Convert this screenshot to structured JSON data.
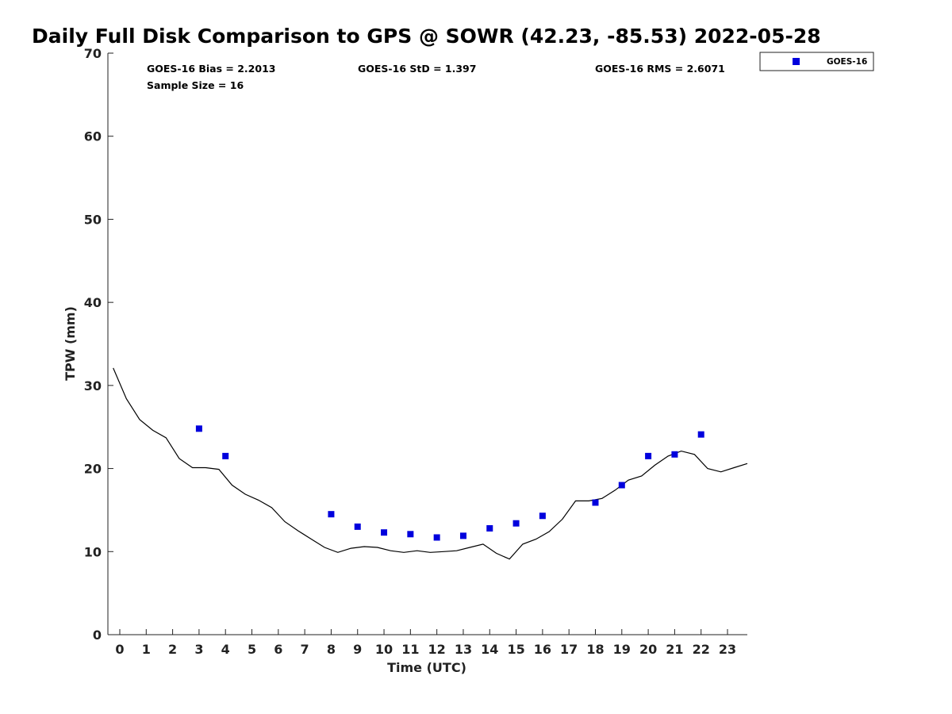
{
  "chart_data": {
    "type": "scatter",
    "title": "Daily Full Disk Comparison to GPS @ SOWR (42.23, -85.53) 2022-05-28",
    "xlabel": "Time (UTC)",
    "ylabel": "TPW (mm)",
    "xlim": [
      -0.45,
      23.75
    ],
    "ylim": [
      0,
      70
    ],
    "x_ticks": [
      0,
      1,
      2,
      3,
      4,
      5,
      6,
      7,
      8,
      9,
      10,
      11,
      12,
      13,
      14,
      15,
      16,
      17,
      18,
      19,
      20,
      21,
      22,
      23
    ],
    "y_ticks": [
      0,
      10,
      20,
      30,
      40,
      50,
      60,
      70
    ],
    "grid": false,
    "legend": {
      "position": "outside-top-right",
      "entries": [
        "GOES-16"
      ]
    },
    "stats": {
      "bias": "GOES-16 Bias = 2.2013",
      "std": "GOES-16 StD = 1.397",
      "rms": "GOES-16 RMS = 2.6071",
      "sample": "Sample Size = 16"
    },
    "series": [
      {
        "name": "GOES-16",
        "marker": "square",
        "color": "#0000dd",
        "x": [
          3,
          4,
          8,
          9,
          10,
          11,
          12,
          13,
          14,
          15,
          16,
          18,
          19,
          20,
          21,
          22
        ],
        "y": [
          24.8,
          21.5,
          14.5,
          13.0,
          12.3,
          12.1,
          11.7,
          11.9,
          12.8,
          13.4,
          14.3,
          15.9,
          18.0,
          21.5,
          21.7,
          24.1
        ]
      },
      {
        "marker": "line",
        "color": "#000000",
        "x": [
          -0.25,
          0.25,
          0.75,
          1.25,
          1.75,
          2.25,
          2.75,
          3.25,
          3.75,
          4.25,
          4.75,
          5.25,
          5.75,
          6.25,
          6.75,
          7.25,
          7.75,
          8.25,
          8.75,
          9.25,
          9.75,
          10.25,
          10.75,
          11.25,
          11.75,
          12.25,
          12.75,
          13.25,
          13.75,
          14.25,
          14.75,
          15.25,
          15.75,
          16.25,
          16.75,
          17.25,
          17.75,
          18.25,
          18.75,
          19.25,
          19.75,
          20.25,
          20.75,
          21.25,
          21.75,
          22.25,
          22.75,
          23.25,
          23.75
        ],
        "y": [
          32.1,
          28.4,
          25.9,
          24.6,
          23.7,
          21.2,
          20.1,
          20.1,
          19.9,
          18.0,
          16.9,
          16.2,
          15.3,
          13.6,
          12.5,
          11.5,
          10.5,
          9.9,
          10.4,
          10.6,
          10.5,
          10.1,
          9.9,
          10.1,
          9.9,
          10.0,
          10.1,
          10.5,
          10.9,
          9.8,
          9.1,
          10.9,
          11.5,
          12.4,
          13.9,
          16.1,
          16.1,
          16.4,
          17.4,
          18.6,
          19.1,
          20.4,
          21.5,
          22.1,
          21.7,
          20.0,
          19.6,
          20.1,
          20.6
        ]
      }
    ]
  }
}
